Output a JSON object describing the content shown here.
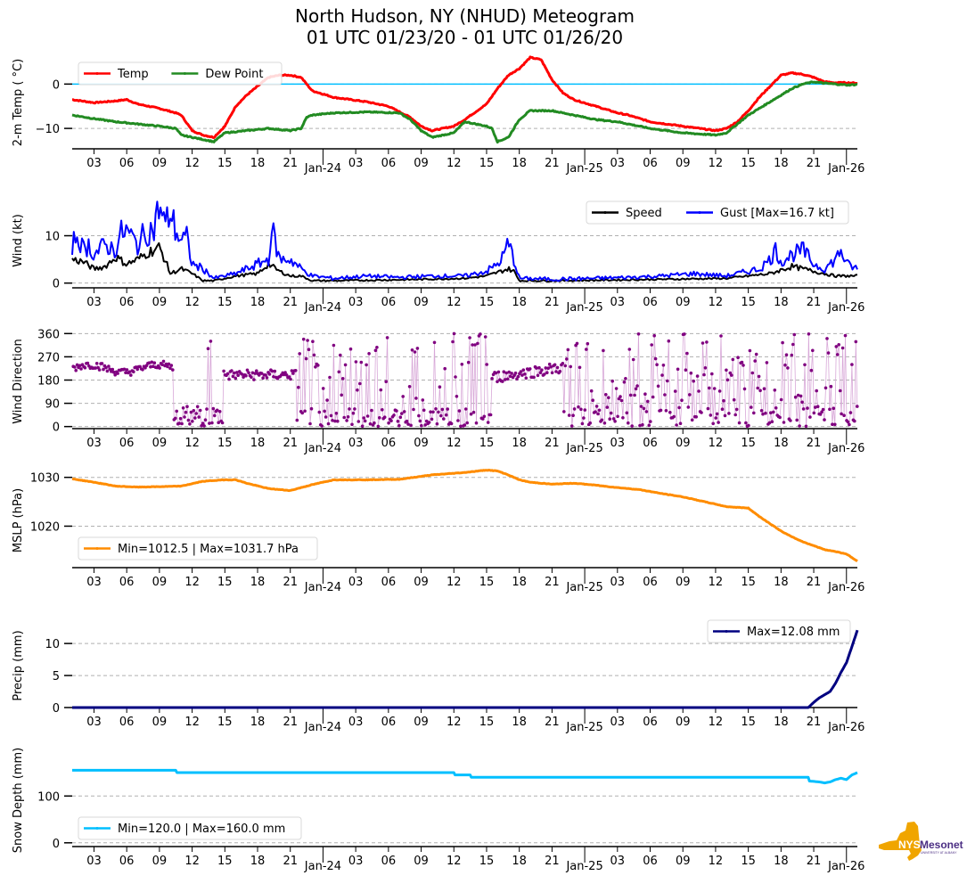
{
  "title": {
    "line1": "North Hudson, NY (NHUD) Meteogram",
    "line2": "01 UTC 01/23/20 - 01 UTC 01/26/20"
  },
  "logo": {
    "text_main": "NYS",
    "text_brand": "Mesonet",
    "text_sub": "UNIVERSITY AT ALBANY",
    "colors": {
      "state": "#f0a500",
      "brand": "#4b2e83"
    }
  },
  "chart_data": [
    {
      "id": "temp",
      "type": "line",
      "ylabel": "2-m Temp ( °C)",
      "yticks": [
        0,
        -10
      ],
      "ylim": [
        -14.6,
        6.5
      ],
      "grid": "y-dashed",
      "reference_line": {
        "value": 0,
        "color": "#00bfff"
      },
      "legend": {
        "placement": "upper-left",
        "ncol": 2
      },
      "x_hours_from_start": "0..72 (start 01 UTC Jan 23)",
      "xtick_labels": [
        "03",
        "06",
        "09",
        "12",
        "15",
        "18",
        "21",
        "Jan-24",
        "03",
        "06",
        "09",
        "12",
        "15",
        "18",
        "21",
        "Jan-25",
        "03",
        "06",
        "09",
        "12",
        "15",
        "18",
        "21",
        "Jan-26"
      ],
      "series": [
        {
          "name": "Temp",
          "color": "#ff0000",
          "x": [
            0,
            2,
            4,
            5,
            6,
            8,
            9.5,
            10,
            11,
            12,
            13,
            14,
            15,
            16,
            17,
            18,
            19,
            20,
            21,
            22,
            24,
            27,
            29,
            31,
            32,
            33,
            35,
            36,
            38,
            39,
            40,
            41,
            42,
            43,
            44,
            45,
            46,
            48,
            50,
            51,
            53,
            56,
            59,
            60,
            61,
            62,
            63,
            64,
            65,
            66,
            67,
            68,
            69,
            70,
            71,
            72
          ],
          "y": [
            -3.5,
            -4.2,
            -3.8,
            -3.5,
            -4.5,
            -5.5,
            -6.5,
            -7,
            -10.5,
            -11.5,
            -12,
            -9.5,
            -5,
            -2.5,
            -0.5,
            1.5,
            2,
            2,
            1.5,
            -1.5,
            -3,
            -4,
            -5,
            -7.5,
            -9.5,
            -10.5,
            -9.5,
            -8,
            -4.5,
            -1,
            2,
            3.5,
            6,
            5.5,
            1,
            -2,
            -3.5,
            -5,
            -6.5,
            -7,
            -8.5,
            -9.5,
            -10.5,
            -10,
            -8.5,
            -6,
            -3,
            -0.5,
            2,
            2.5,
            2.2,
            1.5,
            0.5,
            0.3,
            0.3,
            0.2
          ]
        },
        {
          "name": "Dew Point",
          "color": "#228b22",
          "x": [
            0,
            2,
            4,
            6,
            8,
            9.5,
            10,
            12,
            13,
            14,
            16,
            18,
            20,
            21,
            21.5,
            22,
            24,
            27,
            30,
            31,
            32,
            33,
            35,
            36,
            38,
            38.5,
            39,
            40,
            41,
            42,
            44,
            46,
            48,
            50,
            53,
            56,
            59,
            60,
            61,
            62,
            63,
            64,
            65,
            66,
            67,
            68,
            69,
            70,
            71,
            72
          ],
          "y": [
            -7,
            -7.8,
            -8.5,
            -9,
            -9.5,
            -10,
            -11.5,
            -12.5,
            -13,
            -11,
            -10.5,
            -10,
            -10.5,
            -10,
            -7.5,
            -7,
            -6.5,
            -6.3,
            -6.5,
            -8,
            -10.5,
            -12,
            -11,
            -8.5,
            -9.5,
            -10,
            -13,
            -12,
            -8,
            -6,
            -6,
            -7,
            -8,
            -8.5,
            -10,
            -11,
            -11.5,
            -11,
            -9,
            -7,
            -5.5,
            -4,
            -2.5,
            -1,
            0,
            0.5,
            0.2,
            0.0,
            -0.2,
            -0.1
          ]
        }
      ]
    },
    {
      "id": "wind",
      "type": "line",
      "ylabel": "Wind (kt)",
      "yticks": [
        0,
        10
      ],
      "ylim": [
        -1,
        18
      ],
      "grid": "y-dashed",
      "legend": {
        "placement": "upper-right",
        "ncol": 2
      },
      "series": [
        {
          "name": "Speed",
          "color": "#000000",
          "x": [
            0,
            1,
            2,
            3,
            4,
            5,
            6,
            7,
            8,
            8.5,
            9,
            10,
            11,
            12,
            13,
            15,
            17,
            18,
            19,
            20,
            21,
            22,
            24,
            30,
            36,
            38,
            40,
            40.5,
            41,
            44,
            48,
            54,
            60,
            64,
            66,
            68,
            70,
            72
          ],
          "y": [
            5,
            4.5,
            3,
            3.5,
            5.5,
            4,
            5,
            6.5,
            7.5,
            5,
            2,
            3,
            2,
            0.5,
            0.5,
            1.5,
            2,
            4,
            2.5,
            1.5,
            1.5,
            0.5,
            0.5,
            0.7,
            1,
            1.5,
            3,
            2.5,
            0.5,
            0.5,
            0.6,
            0.8,
            1,
            2,
            3.5,
            2.5,
            1.5,
            1.5
          ]
        },
        {
          "name": "Gust [Max=16.7 kt]",
          "color": "#0000ff",
          "x": [
            0,
            0.5,
            1,
            1.5,
            2,
            3,
            4,
            4.5,
            5,
            6,
            6.5,
            7,
            7.5,
            8,
            8.5,
            9,
            9.5,
            10,
            10.5,
            11,
            12,
            13,
            14,
            15,
            16,
            17,
            18,
            18.3,
            19,
            20,
            21,
            22,
            24,
            27,
            30,
            33,
            36,
            38,
            39,
            39.5,
            40,
            40.5,
            41,
            44,
            48,
            51,
            54,
            57,
            60,
            63,
            64,
            64.5,
            65,
            66,
            67,
            68,
            69,
            70,
            70.5,
            71,
            72
          ],
          "y": [
            8,
            10.5,
            7,
            8,
            6,
            8,
            7,
            10.5,
            11,
            8,
            10,
            11,
            11.5,
            16.5,
            12,
            15,
            11,
            9,
            9.5,
            4,
            3,
            1,
            1.5,
            2,
            3,
            4,
            5,
            11.5,
            5,
            5,
            3,
            1.5,
            1,
            1.5,
            1.2,
            1.5,
            1.5,
            2.5,
            4,
            5.5,
            8.5,
            5,
            1,
            0.8,
            1,
            1.2,
            1.5,
            2,
            1.5,
            3,
            5,
            7,
            4.5,
            6,
            7,
            4,
            3,
            5,
            7,
            4,
            3
          ]
        }
      ]
    },
    {
      "id": "wdir",
      "type": "scatter",
      "ylabel": "Wind Direction",
      "yticks": [
        0,
        90,
        180,
        270,
        360
      ],
      "ylim": [
        -8,
        368
      ],
      "grid": "y-dashed",
      "color": "#800080",
      "connector_color": "#d8a8d8",
      "description": "Steady ~210-240° through 09Z Jan 23, variable 0-360° 10-14Z, ~190-220° 14-21Z, highly variable afterward with a steady ~200-250° period 15-21Z Jan 24"
    },
    {
      "id": "mslp",
      "type": "line",
      "ylabel": "MSLP (hPa)",
      "yticks": [
        1020,
        1030
      ],
      "ylim": [
        1011.5,
        1032.5
      ],
      "grid": "y-dashed",
      "legend": {
        "placement": "lower-left",
        "label": "Min=1012.5 | Max=1031.7 hPa"
      },
      "series": [
        {
          "name": "Min=1012.5 | Max=1031.7 hPa",
          "color": "#ff8c00",
          "x": [
            0,
            2,
            4,
            6,
            8,
            10,
            12,
            14,
            15,
            16,
            18,
            20,
            22,
            24,
            27,
            30,
            33,
            36,
            38,
            39,
            40,
            41,
            42,
            44,
            46,
            48,
            50,
            52,
            54,
            56,
            58,
            60,
            62,
            63,
            64,
            65,
            66,
            67,
            68,
            69,
            70,
            71,
            72
          ],
          "y": [
            1029.7,
            1029,
            1028.2,
            1028,
            1028.1,
            1028.2,
            1029.2,
            1029.5,
            1029.5,
            1028.8,
            1027.7,
            1027.3,
            1028.5,
            1029.5,
            1029.5,
            1029.6,
            1030.5,
            1031,
            1031.5,
            1031.3,
            1030.5,
            1029.5,
            1029,
            1028.6,
            1028.8,
            1028.4,
            1027.9,
            1027.5,
            1026.7,
            1026,
            1025,
            1024,
            1023.7,
            1022,
            1020.5,
            1019,
            1017.8,
            1016.8,
            1016,
            1015.2,
            1014.8,
            1014.3,
            1012.8
          ]
        }
      ]
    },
    {
      "id": "precip",
      "type": "line",
      "ylabel": "Precip (mm)",
      "yticks": [
        0,
        5,
        10
      ],
      "ylim": [
        0,
        12.8
      ],
      "grid": "y-dashed",
      "legend": {
        "placement": "upper-right",
        "label": "Max=12.08 mm"
      },
      "series": [
        {
          "name": "Max=12.08 mm",
          "color": "#000080",
          "x": [
            0,
            67.5,
            68,
            68.5,
            69,
            69.5,
            70,
            70.5,
            71,
            71.5,
            72
          ],
          "y": [
            0,
            0,
            0.8,
            1.5,
            2,
            2.5,
            3.8,
            5.5,
            7,
            9.5,
            12.08
          ]
        }
      ]
    },
    {
      "id": "snow",
      "type": "line",
      "ylabel": "Snow Depth (mm)",
      "yticks": [
        0,
        100
      ],
      "ylim": [
        -8,
        190
      ],
      "grid": "y-dashed",
      "legend": {
        "placement": "lower-left",
        "label": "Min=120.0 | Max=160.0 mm"
      },
      "series": [
        {
          "name": "Min=120.0 | Max=160.0 mm",
          "color": "#00bfff",
          "x": [
            0,
            9.5,
            9.6,
            35,
            35.1,
            36.5,
            36.6,
            67.5,
            67.6,
            68.5,
            69,
            69.5,
            70,
            70.5,
            71,
            71.5,
            72
          ],
          "y": [
            155,
            155,
            150,
            150,
            145,
            145,
            140,
            140,
            132,
            130,
            128,
            130,
            135,
            138,
            135,
            145,
            150
          ]
        }
      ]
    }
  ]
}
